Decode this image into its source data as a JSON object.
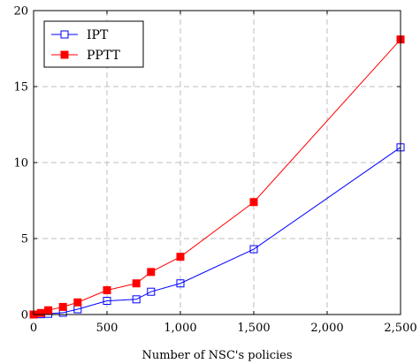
{
  "chart_data": {
    "type": "line",
    "title": "",
    "xlabel": "Number of NSC's policies",
    "ylabel": "",
    "xlim": [
      0,
      2500
    ],
    "ylim": [
      0,
      20
    ],
    "grid": true,
    "legend_position": "top-left",
    "x_ticks": [
      0,
      500,
      1000,
      1500,
      2000,
      2500
    ],
    "x_tick_labels": [
      "0",
      "500",
      "1,000",
      "1,500",
      "2,000",
      "2,500"
    ],
    "y_ticks": [
      0,
      5,
      10,
      15,
      20
    ],
    "y_tick_labels": [
      "0",
      "5",
      "10",
      "15",
      "20"
    ],
    "series": [
      {
        "name": "IPT",
        "color": "#0000ff",
        "marker": "open-square",
        "x": [
          0,
          50,
          100,
          200,
          300,
          500,
          700,
          800,
          1000,
          1500,
          2500
        ],
        "y": [
          0.0,
          0.02,
          0.05,
          0.12,
          0.35,
          0.9,
          1.0,
          1.5,
          2.05,
          4.3,
          11.0
        ]
      },
      {
        "name": "PPTT",
        "color": "#ff0000",
        "marker": "filled-square",
        "x": [
          0,
          50,
          100,
          200,
          300,
          500,
          700,
          800,
          1000,
          1500,
          2500
        ],
        "y": [
          0.0,
          0.1,
          0.28,
          0.5,
          0.8,
          1.6,
          2.05,
          2.8,
          3.8,
          7.4,
          18.1
        ]
      }
    ]
  }
}
